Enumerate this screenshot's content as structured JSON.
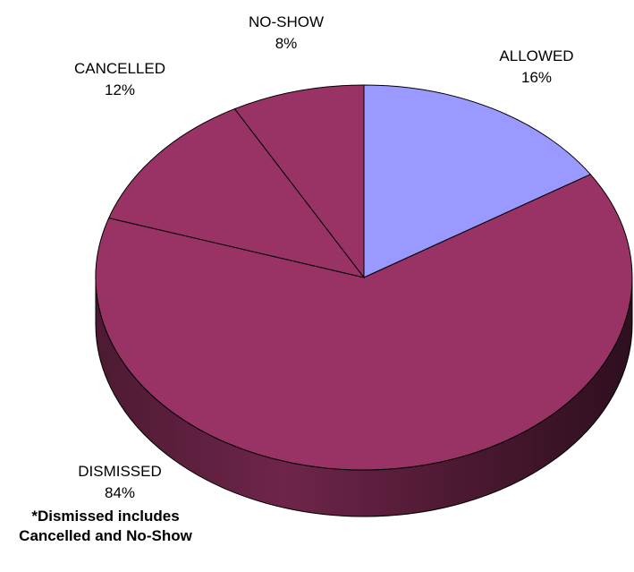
{
  "chart_data": {
    "type": "pie",
    "title": "",
    "categories": [
      "ALLOWED",
      "NO-SHOW",
      "CANCELLED",
      "DISMISSED"
    ],
    "labels": [
      {
        "name": "ALLOWED",
        "percent_text": "16%"
      },
      {
        "name": "NO-SHOW",
        "percent_text": "8%"
      },
      {
        "name": "CANCELLED",
        "percent_text": "12%"
      },
      {
        "name": "DISMISSED",
        "percent_text": "84%"
      }
    ],
    "slices": [
      {
        "name": "ALLOWED",
        "value": 16,
        "color": "#9999FF"
      },
      {
        "name": "DISMISSED (other)",
        "value": 64,
        "color": "#993366"
      },
      {
        "name": "CANCELLED",
        "value": 12,
        "color": "#993366"
      },
      {
        "name": "NO-SHOW",
        "value": 8,
        "color": "#993366"
      }
    ],
    "dismissed_total": 84,
    "style": "3d-pie",
    "legend": "none",
    "grid": false
  },
  "footnote": {
    "line1": "*Dismissed includes",
    "line2": "Cancelled and No-Show"
  }
}
